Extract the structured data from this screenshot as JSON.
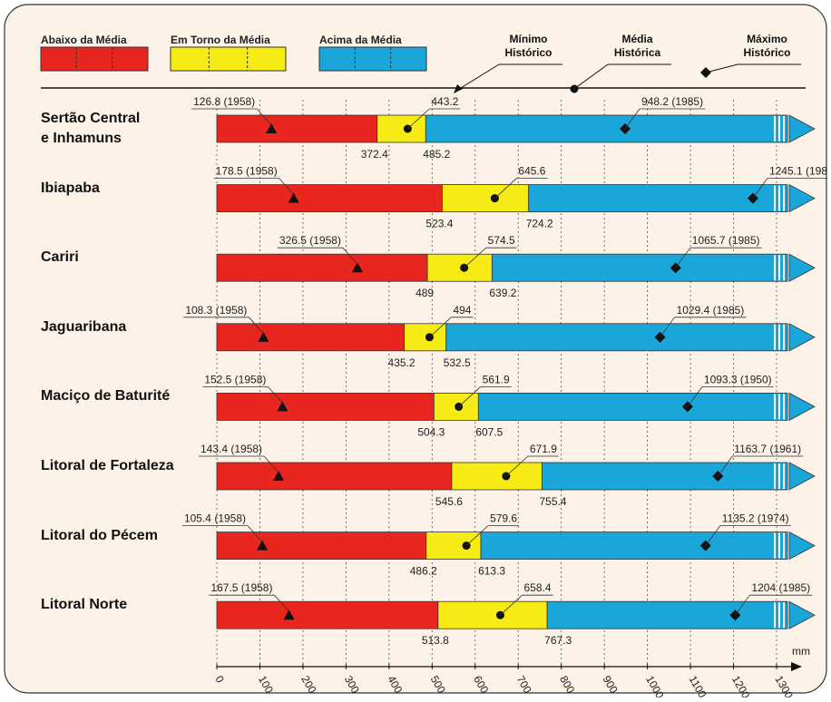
{
  "chart_data": {
    "type": "range_bar",
    "categories": [
      "Sertão Central\ne Inhamuns",
      "Ibiapaba",
      "Cariri",
      "Jaguaribana",
      "Maciço de Baturité",
      "Litoral de Fortaleza",
      "Litoral do Pécem",
      "Litoral Norte"
    ],
    "bands": [
      {
        "name": "Abaixo da Média",
        "color": "#e8261f"
      },
      {
        "name": "Em Torno da Média",
        "color": "#f7eb16"
      },
      {
        "name": "Acima da Média",
        "color": "#1ba6da"
      }
    ],
    "markers": [
      {
        "name": "Mínimo\nHistórico",
        "shape": "triangle"
      },
      {
        "name": "Média\nHistórica",
        "shape": "circle"
      },
      {
        "name": "Máximo\nHistórico",
        "shape": "diamond"
      }
    ],
    "minimum": {
      "values": [
        126.8,
        178.5,
        326.5,
        108.3,
        152.5,
        143.4,
        105.4,
        167.5
      ],
      "value_labels": [
        "126.8 (1958)",
        "178.5 (1958)",
        "326.5 (1958)",
        "108.3 (1958)",
        "152.5 (1958)",
        "143.4 (1958)",
        "105.4 (1958)",
        "167.5 (1958)"
      ]
    },
    "lower": [
      372.4,
      523.4,
      489,
      435.2,
      504.3,
      545.6,
      486.2,
      513.8
    ],
    "mean": [
      443.2,
      645.6,
      574.5,
      494,
      561.9,
      671.9,
      579.6,
      658.4
    ],
    "upper": [
      485.2,
      724.2,
      639.2,
      532.5,
      607.5,
      755.4,
      613.3,
      767.3
    ],
    "maximum": {
      "values": [
        948.2,
        1245.1,
        1065.7,
        1029.4,
        1093.3,
        1163.7,
        1135.2,
        1204
      ],
      "value_labels": [
        "948.2 (1985)",
        "1245.1 (198",
        "1065.7 (1985)",
        "1029.4 (1985)",
        "1093.3 (1950)",
        "1163.7 (1961)",
        "1135.2 (1974)",
        "1204 (1985)"
      ]
    },
    "x_unit": "mm",
    "xlim": [
      0,
      1300
    ],
    "xticks": [
      0,
      100,
      200,
      300,
      400,
      500,
      600,
      700,
      800,
      900,
      1000,
      1100,
      1200,
      1300
    ],
    "grid": true
  }
}
